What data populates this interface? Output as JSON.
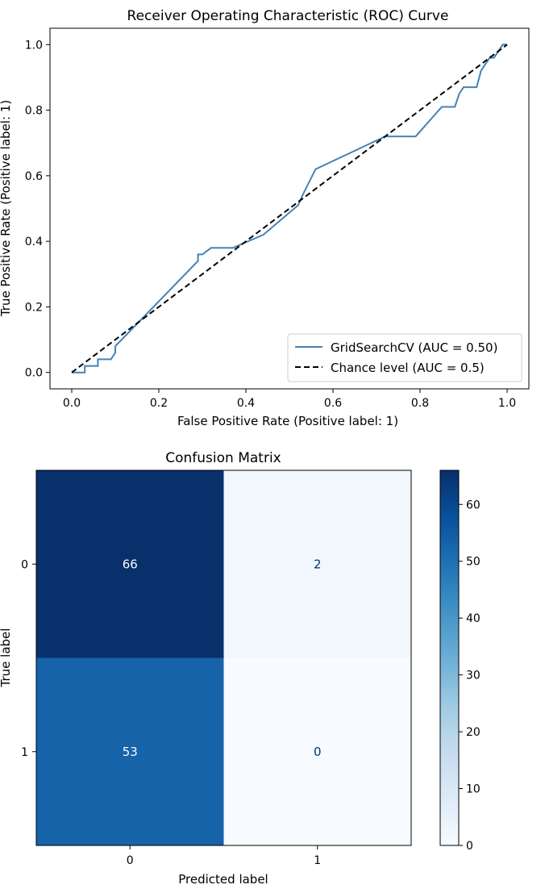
{
  "chart_data": [
    {
      "type": "line",
      "title": "Receiver Operating Characteristic (ROC) Curve",
      "xlabel": "False Positive Rate (Positive label: 1)",
      "ylabel": "True Positive Rate (Positive label: 1)",
      "xlim": [
        -0.05,
        1.05
      ],
      "ylim": [
        -0.05,
        1.05
      ],
      "xticks": [
        "0.0",
        "0.2",
        "0.4",
        "0.6",
        "0.8",
        "1.0"
      ],
      "yticks": [
        "0.0",
        "0.2",
        "0.4",
        "0.6",
        "0.8",
        "1.0"
      ],
      "grid": false,
      "legend_position": "bottom-right",
      "colors": {
        "roc": "#4682b4",
        "chance": "#000000"
      },
      "series": [
        {
          "name": "GridSearchCV (AUC = 0.50)",
          "style": "solid",
          "x": [
            0.0,
            0.03,
            0.03,
            0.06,
            0.06,
            0.09,
            0.1,
            0.1,
            0.29,
            0.29,
            0.3,
            0.32,
            0.37,
            0.44,
            0.52,
            0.53,
            0.56,
            0.72,
            0.79,
            0.85,
            0.88,
            0.89,
            0.9,
            0.93,
            0.94,
            0.95,
            0.96,
            0.97,
            0.99,
            1.0
          ],
          "y": [
            0.0,
            0.0,
            0.02,
            0.02,
            0.04,
            0.04,
            0.06,
            0.08,
            0.34,
            0.36,
            0.36,
            0.38,
            0.38,
            0.42,
            0.51,
            0.54,
            0.62,
            0.72,
            0.72,
            0.81,
            0.81,
            0.85,
            0.87,
            0.87,
            0.92,
            0.94,
            0.96,
            0.96,
            1.0,
            1.0
          ]
        },
        {
          "name": "Chance level (AUC = 0.5)",
          "style": "dashed",
          "x": [
            0.0,
            1.0
          ],
          "y": [
            0.0,
            1.0
          ]
        }
      ]
    },
    {
      "type": "heatmap",
      "title": "Confusion Matrix",
      "xlabel": "Predicted label",
      "ylabel": "True label",
      "x_categories": [
        "0",
        "1"
      ],
      "y_categories": [
        "0",
        "1"
      ],
      "values": [
        [
          66,
          2
        ],
        [
          53,
          0
        ]
      ],
      "cell_labels": [
        [
          "66",
          "2"
        ],
        [
          "53",
          "0"
        ]
      ],
      "colormap": "Blues",
      "colorbar": {
        "min": 0,
        "max": 66,
        "ticks": [
          "0",
          "10",
          "20",
          "30",
          "40",
          "50",
          "60"
        ]
      }
    }
  ]
}
